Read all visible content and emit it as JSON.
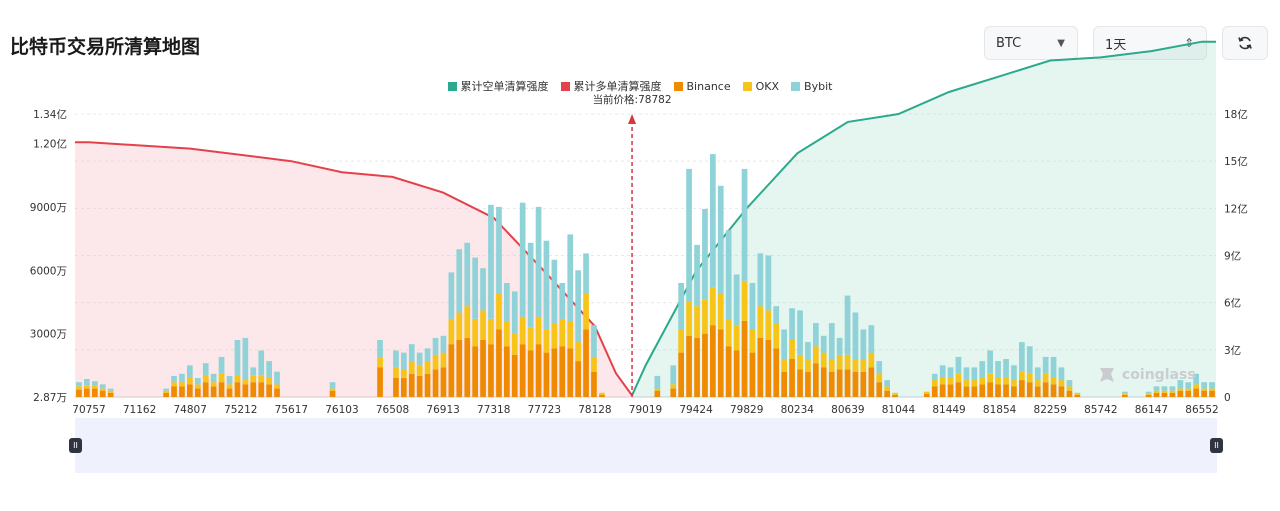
{
  "header": {
    "title": "比特币交易所清算地图",
    "coin": "BTC",
    "range": "1天"
  },
  "icons": {
    "refresh": "refresh-icon",
    "coin_caret": "caret-down-icon",
    "range_caret": "updown-icon",
    "watermark": "coinglass-logo"
  },
  "watermark_text": "coinglass",
  "colors": {
    "short_cum": "#2aa98c",
    "long_cum": "#e5414b",
    "binance": "#f08a00",
    "okx": "#f7c41a",
    "bybit": "#8fd3d8",
    "price_line": "#d9363e"
  },
  "chart_data": {
    "type": "bar",
    "legend": [
      "累计空单清算强度",
      "累计多单清算强度",
      "Binance",
      "OKX",
      "Bybit"
    ],
    "current_price_label": "当前价格:78782",
    "current_price": 78782,
    "x_tick_labels": [
      "70757",
      "71162",
      "74807",
      "75212",
      "75617",
      "76103",
      "76508",
      "76913",
      "77318",
      "77723",
      "78128",
      "79019",
      "79424",
      "79829",
      "80234",
      "80639",
      "81044",
      "81449",
      "81854",
      "82259",
      "85742",
      "86147",
      "86552"
    ],
    "left_axis_labels": [
      "2.87万",
      "3000万",
      "6000万",
      "9000万",
      "1.20亿",
      "1.34亿"
    ],
    "left_axis_values": [
      28700,
      30000000,
      60000000,
      90000000,
      120000000,
      134000000
    ],
    "right_axis_labels": [
      "0",
      "3亿",
      "6亿",
      "9亿",
      "12亿",
      "15亿",
      "18亿"
    ],
    "right_axis_values": [
      0,
      300000000,
      600000000,
      900000000,
      1200000000,
      1500000000,
      1800000000
    ],
    "ylim_left": [
      0,
      134000000
    ],
    "ylim_right": [
      0,
      1800000000
    ],
    "bars_million": {
      "binance": [
        3.5,
        4,
        4,
        3,
        2,
        0,
        0,
        0,
        0,
        0,
        0,
        2,
        5,
        5,
        6,
        4,
        7,
        5,
        7,
        4,
        7,
        6,
        7,
        7,
        6,
        4,
        0,
        0,
        0,
        0,
        0,
        0,
        3,
        0,
        0,
        0,
        0,
        0,
        14,
        0,
        9,
        9,
        11,
        10,
        11,
        13,
        14,
        25,
        27,
        28,
        24,
        27,
        25,
        32,
        24,
        20,
        25,
        22,
        25,
        21,
        23,
        24,
        23,
        17,
        32,
        12,
        1,
        0,
        0,
        0,
        0,
        0,
        0,
        3,
        0,
        4,
        21,
        29,
        28,
        30,
        34,
        32,
        24,
        22,
        36,
        21,
        28,
        27,
        23,
        12,
        18,
        13,
        12,
        16,
        14,
        12,
        13,
        13,
        12,
        12,
        14,
        7,
        3,
        1,
        0,
        0,
        0,
        1.5,
        5,
        6,
        6,
        7,
        5,
        5,
        6,
        7,
        6,
        6,
        5,
        8,
        7,
        5,
        7,
        6,
        5,
        3,
        1,
        0,
        0,
        0,
        0,
        0,
        1,
        0,
        0,
        1,
        2,
        2,
        2,
        3,
        3,
        4,
        3,
        3
      ],
      "okx": [
        1.5,
        1.5,
        1.5,
        1,
        1,
        0,
        0,
        0,
        0,
        0,
        0,
        1,
        2,
        2,
        3,
        2,
        3,
        2,
        4,
        2,
        3,
        2,
        3,
        3,
        3,
        2,
        0,
        0,
        0,
        0,
        0,
        0,
        1,
        0,
        0,
        0,
        0,
        0,
        5,
        0,
        5,
        4,
        6,
        5,
        6,
        7,
        7,
        12,
        13,
        15,
        13,
        14,
        12,
        17,
        12,
        10,
        13,
        11,
        13,
        11,
        12,
        13,
        13,
        9,
        17,
        7,
        1,
        0,
        0,
        0,
        0,
        0,
        0,
        1,
        0,
        2,
        11,
        16,
        15,
        16,
        18,
        17,
        13,
        12,
        19,
        11,
        15,
        14,
        12,
        6,
        9,
        7,
        6,
        8,
        7,
        6,
        7,
        7,
        6,
        6,
        7,
        4,
        2,
        1,
        0,
        0,
        0,
        1,
        3,
        3,
        3,
        4,
        3,
        3,
        3,
        4,
        3,
        3,
        3,
        4,
        4,
        3,
        4,
        3,
        3,
        2,
        0.5,
        0,
        0,
        0,
        0,
        0,
        0.5,
        0,
        0,
        0.5,
        1,
        1,
        1,
        1,
        1,
        2,
        1,
        1
      ],
      "bybit": [
        2,
        3,
        2,
        2,
        1,
        0,
        0,
        0,
        0,
        0,
        0,
        1,
        3,
        4,
        6,
        3,
        6,
        4,
        8,
        4,
        17,
        20,
        4,
        12,
        8,
        6,
        0,
        0,
        0,
        0,
        0,
        0,
        3,
        0,
        0,
        0,
        0,
        0,
        8,
        0,
        8,
        8,
        8,
        6,
        6,
        8,
        8,
        22,
        30,
        30,
        29,
        20,
        54,
        41,
        18,
        20,
        54,
        40,
        52,
        42,
        30,
        17,
        41,
        34,
        19,
        15,
        0,
        0,
        0,
        0,
        0,
        0,
        0,
        6,
        0,
        9,
        22,
        63,
        29,
        43,
        63,
        51,
        42,
        24,
        53,
        22,
        25,
        26,
        8,
        14,
        15,
        21,
        8,
        11,
        8,
        17,
        8,
        28,
        22,
        14,
        13,
        6,
        3,
        0,
        0,
        0,
        0,
        0,
        3,
        6,
        5,
        8,
        6,
        6,
        8,
        11,
        8,
        9,
        7,
        14,
        13,
        6,
        8,
        10,
        6,
        3,
        0.5,
        0,
        0,
        0,
        0,
        0,
        1,
        0,
        0,
        1,
        2,
        2,
        2,
        4,
        3,
        5,
        3,
        3
      ]
    },
    "long_cumulative_billion": [
      [
        70757,
        1.62
      ],
      [
        74807,
        1.58
      ],
      [
        75617,
        1.5
      ],
      [
        76103,
        1.43
      ],
      [
        76508,
        1.4
      ],
      [
        76913,
        1.3
      ],
      [
        77318,
        1.14
      ],
      [
        77723,
        0.8
      ],
      [
        78128,
        0.45
      ],
      [
        78500,
        0.15
      ],
      [
        78782,
        0.01
      ]
    ],
    "short_cumulative_billion": [
      [
        78782,
        0.01
      ],
      [
        79019,
        0.2
      ],
      [
        79424,
        0.8
      ],
      [
        79829,
        1.2
      ],
      [
        80234,
        1.55
      ],
      [
        80639,
        1.75
      ],
      [
        81044,
        1.8
      ],
      [
        81449,
        1.94
      ],
      [
        81854,
        2.04
      ],
      [
        82259,
        2.14
      ],
      [
        85742,
        2.16
      ],
      [
        86147,
        2.2
      ],
      [
        86552,
        2.26
      ]
    ]
  }
}
